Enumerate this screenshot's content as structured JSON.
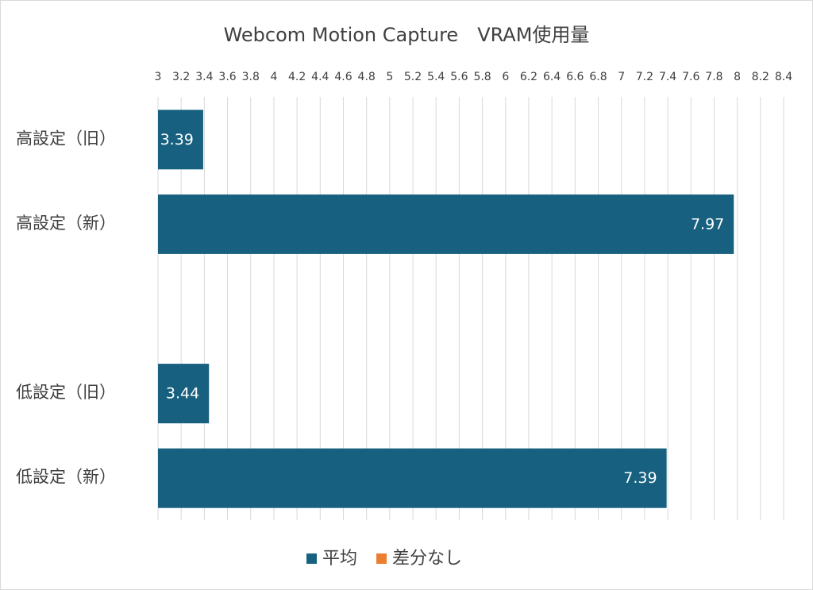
{
  "chart_data": {
    "type": "bar",
    "orientation": "horizontal",
    "title": "Webcom Motion Capture　VRAM使用量",
    "categories": [
      "高設定（旧）",
      "高設定（新）",
      null,
      "低設定（旧）",
      "低設定（新）"
    ],
    "series": [
      {
        "name": "平均",
        "color": "#17607f",
        "values": [
          3.39,
          7.97,
          null,
          3.44,
          7.39
        ]
      },
      {
        "name": "差分なし",
        "color": "#ed7d31",
        "values": [
          null,
          null,
          null,
          null,
          null
        ]
      }
    ],
    "xlim": [
      3,
      8.4
    ],
    "xticks": [
      3,
      3.2,
      3.4,
      3.6,
      3.8,
      4,
      4.2,
      4.4,
      4.6,
      4.8,
      5,
      5.2,
      5.4,
      5.6,
      5.8,
      6,
      6.2,
      6.4,
      6.6,
      6.8,
      7,
      7.2,
      7.4,
      7.6,
      7.8,
      8,
      8.2,
      8.4
    ],
    "grid": true,
    "legend": "bottom"
  }
}
